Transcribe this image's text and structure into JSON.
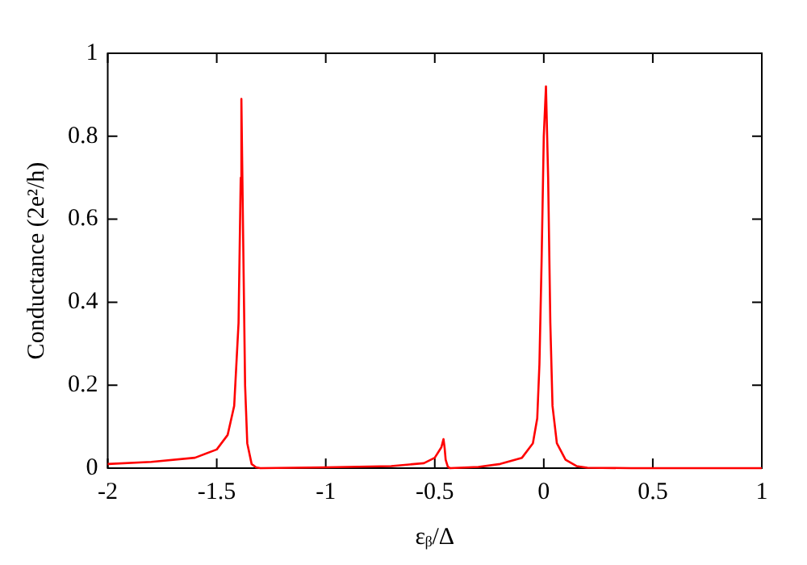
{
  "chart_data": {
    "type": "line",
    "xlabel": "εᵦ/Δ",
    "ylabel": "Conductance (2e²/h)",
    "xlim": [
      -2,
      1
    ],
    "ylim": [
      0,
      1
    ],
    "xticks": [
      -2,
      -1.5,
      -1,
      -0.5,
      0,
      0.5,
      1
    ],
    "yticks": [
      0,
      0.2,
      0.4,
      0.6,
      0.8,
      1
    ],
    "marker": "none",
    "line_style": "solid",
    "legend": false,
    "series": [
      {
        "color": "#ff0000",
        "x": [
          -2,
          -1.8,
          -1.6,
          -1.5,
          -1.45,
          -1.42,
          -1.4,
          -1.39,
          -1.387,
          -1.38,
          -1.37,
          -1.36,
          -1.34,
          -1.32,
          -1.3,
          -1,
          -0.7,
          -0.55,
          -0.5,
          -0.47,
          -0.46,
          -0.455,
          -0.45,
          -0.44,
          -0.43,
          -0.3,
          -0.2,
          -0.1,
          -0.05,
          -0.03,
          -0.02,
          -0.01,
          0,
          0.01,
          0.02,
          0.03,
          0.04,
          0.06,
          0.1,
          0.15,
          0.2,
          0.4,
          1
        ],
        "values": [
          0.01,
          0.015,
          0.025,
          0.045,
          0.08,
          0.15,
          0.35,
          0.7,
          0.89,
          0.6,
          0.2,
          0.06,
          0.01,
          0.002,
          0,
          0.002,
          0.005,
          0.012,
          0.025,
          0.05,
          0.07,
          0.05,
          0.02,
          0.003,
          0,
          0.003,
          0.01,
          0.025,
          0.06,
          0.12,
          0.25,
          0.5,
          0.8,
          0.92,
          0.7,
          0.35,
          0.15,
          0.06,
          0.02,
          0.005,
          0.001,
          0,
          0
        ]
      }
    ]
  }
}
